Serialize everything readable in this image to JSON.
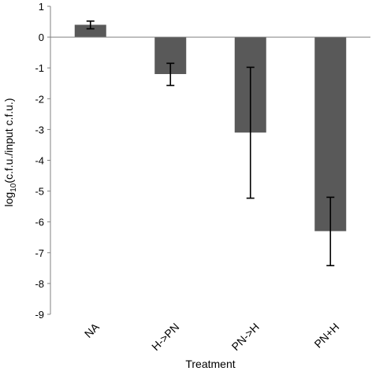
{
  "chart_data": {
    "type": "bar",
    "title": "",
    "xlabel": "Treatment",
    "ylabel": {
      "prefix": "log",
      "subscript": "10",
      "suffix": "(c.f.u./input c.f.u.)"
    },
    "categories": [
      "NA",
      "H->PN",
      "PN->H",
      "PN+H"
    ],
    "values": [
      0.4,
      -1.2,
      -3.1,
      -6.3
    ],
    "error_bars": [
      {
        "low": 0.27,
        "high": 0.52
      },
      {
        "low": -1.57,
        "high": -0.85
      },
      {
        "low": -5.23,
        "high": -0.98
      },
      {
        "low": -7.42,
        "high": -5.2
      }
    ],
    "ylim": [
      -9,
      1
    ],
    "yticks": [
      1,
      0,
      -1,
      -2,
      -3,
      -4,
      -5,
      -6,
      -7,
      -8,
      -9
    ],
    "ytick_labels": [
      "1",
      "0",
      "-1",
      "-2",
      "-3",
      "-4",
      "-5",
      "-6",
      "-7",
      "-8",
      "-9"
    ],
    "grid": false,
    "legend": "none",
    "bar_color": "#595959",
    "axis_color": "#808080",
    "errorbar_color": "#000000"
  }
}
